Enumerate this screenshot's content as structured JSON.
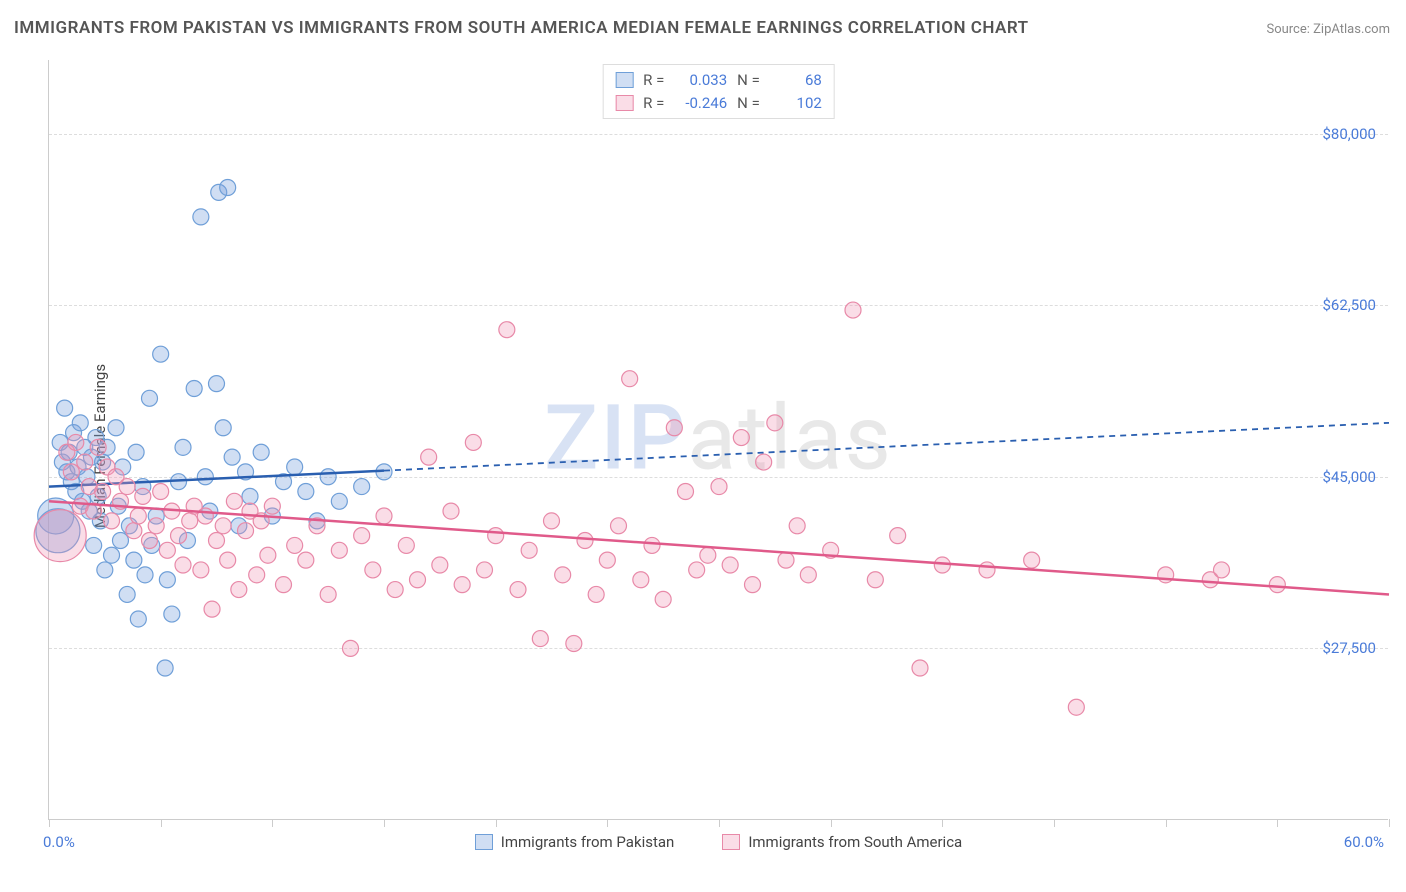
{
  "title": "IMMIGRANTS FROM PAKISTAN VS IMMIGRANTS FROM SOUTH AMERICA MEDIAN FEMALE EARNINGS CORRELATION CHART",
  "source": "Source: ZipAtlas.com",
  "watermark": {
    "zip": "ZIP",
    "atlas": "atlas"
  },
  "chart": {
    "type": "scatter-correlation",
    "y_axis_title": "Median Female Earnings",
    "xlim": [
      0,
      60
    ],
    "ylim": [
      10000,
      87500
    ],
    "x_tick_positions": [
      0,
      5,
      10,
      15,
      20,
      25,
      30,
      35,
      40,
      45,
      50,
      55,
      60
    ],
    "x_label_min": "0.0%",
    "x_label_max": "60.0%",
    "y_ticks": [
      {
        "v": 27500,
        "label": "$27,500"
      },
      {
        "v": 45000,
        "label": "$45,000"
      },
      {
        "v": 62500,
        "label": "$62,500"
      },
      {
        "v": 80000,
        "label": "$80,000"
      }
    ],
    "grid_color": "#dddddd",
    "background_color": "#ffffff",
    "axis_color": "#cccccc",
    "tick_label_color": "#4a7bd8",
    "series": [
      {
        "name": "Immigrants from Pakistan",
        "fill": "rgba(120,160,220,0.35)",
        "stroke": "#6f9fd8",
        "line_color": "#2a5fb0",
        "r_value": "0.033",
        "n_value": "68",
        "fit": {
          "x1": 0,
          "y1": 44000,
          "x2": 60,
          "y2": 50500,
          "solid_until_x": 15
        },
        "points": [
          {
            "x": 0.3,
            "y": 41000,
            "r": 18
          },
          {
            "x": 0.4,
            "y": 39500,
            "r": 22
          },
          {
            "x": 0.5,
            "y": 48500
          },
          {
            "x": 0.6,
            "y": 46500
          },
          {
            "x": 0.7,
            "y": 52000
          },
          {
            "x": 0.8,
            "y": 45500
          },
          {
            "x": 0.9,
            "y": 47500
          },
          {
            "x": 1.0,
            "y": 44500
          },
          {
            "x": 1.1,
            "y": 49500
          },
          {
            "x": 1.2,
            "y": 43500
          },
          {
            "x": 1.3,
            "y": 46000
          },
          {
            "x": 1.4,
            "y": 50500
          },
          {
            "x": 1.5,
            "y": 42500
          },
          {
            "x": 1.6,
            "y": 48000
          },
          {
            "x": 1.7,
            "y": 45000
          },
          {
            "x": 1.8,
            "y": 41500
          },
          {
            "x": 1.9,
            "y": 47000
          },
          {
            "x": 2.0,
            "y": 38000
          },
          {
            "x": 2.1,
            "y": 49000
          },
          {
            "x": 2.2,
            "y": 43000
          },
          {
            "x": 2.3,
            "y": 40500
          },
          {
            "x": 2.4,
            "y": 46500
          },
          {
            "x": 2.5,
            "y": 35500
          },
          {
            "x": 2.6,
            "y": 48000
          },
          {
            "x": 2.8,
            "y": 37000
          },
          {
            "x": 3.0,
            "y": 50000
          },
          {
            "x": 3.1,
            "y": 42000
          },
          {
            "x": 3.2,
            "y": 38500
          },
          {
            "x": 3.3,
            "y": 46000
          },
          {
            "x": 3.5,
            "y": 33000
          },
          {
            "x": 3.6,
            "y": 40000
          },
          {
            "x": 3.8,
            "y": 36500
          },
          {
            "x": 3.9,
            "y": 47500
          },
          {
            "x": 4.0,
            "y": 30500
          },
          {
            "x": 4.2,
            "y": 44000
          },
          {
            "x": 4.3,
            "y": 35000
          },
          {
            "x": 4.5,
            "y": 53000
          },
          {
            "x": 4.6,
            "y": 38000
          },
          {
            "x": 4.8,
            "y": 41000
          },
          {
            "x": 5.0,
            "y": 57500
          },
          {
            "x": 5.2,
            "y": 25500
          },
          {
            "x": 5.3,
            "y": 34500
          },
          {
            "x": 5.5,
            "y": 31000
          },
          {
            "x": 5.8,
            "y": 44500
          },
          {
            "x": 6.0,
            "y": 48000
          },
          {
            "x": 6.2,
            "y": 38500
          },
          {
            "x": 6.5,
            "y": 54000
          },
          {
            "x": 6.8,
            "y": 71500
          },
          {
            "x": 7.0,
            "y": 45000
          },
          {
            "x": 7.2,
            "y": 41500
          },
          {
            "x": 7.5,
            "y": 54500
          },
          {
            "x": 7.6,
            "y": 74000
          },
          {
            "x": 7.8,
            "y": 50000
          },
          {
            "x": 8.0,
            "y": 74500
          },
          {
            "x": 8.2,
            "y": 47000
          },
          {
            "x": 8.5,
            "y": 40000
          },
          {
            "x": 8.8,
            "y": 45500
          },
          {
            "x": 9.0,
            "y": 43000
          },
          {
            "x": 9.5,
            "y": 47500
          },
          {
            "x": 10.0,
            "y": 41000
          },
          {
            "x": 10.5,
            "y": 44500
          },
          {
            "x": 11.0,
            "y": 46000
          },
          {
            "x": 11.5,
            "y": 43500
          },
          {
            "x": 12.0,
            "y": 40500
          },
          {
            "x": 12.5,
            "y": 45000
          },
          {
            "x": 13.0,
            "y": 42500
          },
          {
            "x": 14.0,
            "y": 44000
          },
          {
            "x": 15.0,
            "y": 45500
          }
        ]
      },
      {
        "name": "Immigrants from South America",
        "fill": "rgba(240,150,180,0.32)",
        "stroke": "#e889a8",
        "line_color": "#e05a8a",
        "r_value": "-0.246",
        "n_value": "102",
        "fit": {
          "x1": 0,
          "y1": 42500,
          "x2": 60,
          "y2": 33000,
          "solid_until_x": 60
        },
        "points": [
          {
            "x": 0.5,
            "y": 39000,
            "r": 26
          },
          {
            "x": 0.8,
            "y": 47500
          },
          {
            "x": 1.0,
            "y": 45500
          },
          {
            "x": 1.2,
            "y": 48500
          },
          {
            "x": 1.4,
            "y": 42000
          },
          {
            "x": 1.6,
            "y": 46500
          },
          {
            "x": 1.8,
            "y": 44000
          },
          {
            "x": 2.0,
            "y": 41500
          },
          {
            "x": 2.2,
            "y": 48000
          },
          {
            "x": 2.4,
            "y": 43500
          },
          {
            "x": 2.6,
            "y": 46000
          },
          {
            "x": 2.8,
            "y": 40500
          },
          {
            "x": 3.0,
            "y": 45000
          },
          {
            "x": 3.2,
            "y": 42500
          },
          {
            "x": 3.5,
            "y": 44000
          },
          {
            "x": 3.8,
            "y": 39500
          },
          {
            "x": 4.0,
            "y": 41000
          },
          {
            "x": 4.2,
            "y": 43000
          },
          {
            "x": 4.5,
            "y": 38500
          },
          {
            "x": 4.8,
            "y": 40000
          },
          {
            "x": 5.0,
            "y": 43500
          },
          {
            "x": 5.3,
            "y": 37500
          },
          {
            "x": 5.5,
            "y": 41500
          },
          {
            "x": 5.8,
            "y": 39000
          },
          {
            "x": 6.0,
            "y": 36000
          },
          {
            "x": 6.3,
            "y": 40500
          },
          {
            "x": 6.5,
            "y": 42000
          },
          {
            "x": 6.8,
            "y": 35500
          },
          {
            "x": 7.0,
            "y": 41000
          },
          {
            "x": 7.3,
            "y": 31500
          },
          {
            "x": 7.5,
            "y": 38500
          },
          {
            "x": 7.8,
            "y": 40000
          },
          {
            "x": 8.0,
            "y": 36500
          },
          {
            "x": 8.3,
            "y": 42500
          },
          {
            "x": 8.5,
            "y": 33500
          },
          {
            "x": 8.8,
            "y": 39500
          },
          {
            "x": 9.0,
            "y": 41500
          },
          {
            "x": 9.3,
            "y": 35000
          },
          {
            "x": 9.5,
            "y": 40500
          },
          {
            "x": 9.8,
            "y": 37000
          },
          {
            "x": 10.0,
            "y": 42000
          },
          {
            "x": 10.5,
            "y": 34000
          },
          {
            "x": 11.0,
            "y": 38000
          },
          {
            "x": 11.5,
            "y": 36500
          },
          {
            "x": 12.0,
            "y": 40000
          },
          {
            "x": 12.5,
            "y": 33000
          },
          {
            "x": 13.0,
            "y": 37500
          },
          {
            "x": 13.5,
            "y": 27500
          },
          {
            "x": 14.0,
            "y": 39000
          },
          {
            "x": 14.5,
            "y": 35500
          },
          {
            "x": 15.0,
            "y": 41000
          },
          {
            "x": 15.5,
            "y": 33500
          },
          {
            "x": 16.0,
            "y": 38000
          },
          {
            "x": 16.5,
            "y": 34500
          },
          {
            "x": 17.0,
            "y": 47000
          },
          {
            "x": 17.5,
            "y": 36000
          },
          {
            "x": 18.0,
            "y": 41500
          },
          {
            "x": 18.5,
            "y": 34000
          },
          {
            "x": 19.0,
            "y": 48500
          },
          {
            "x": 19.5,
            "y": 35500
          },
          {
            "x": 20.0,
            "y": 39000
          },
          {
            "x": 20.5,
            "y": 60000
          },
          {
            "x": 21.0,
            "y": 33500
          },
          {
            "x": 21.5,
            "y": 37500
          },
          {
            "x": 22.0,
            "y": 28500
          },
          {
            "x": 22.5,
            "y": 40500
          },
          {
            "x": 23.0,
            "y": 35000
          },
          {
            "x": 23.5,
            "y": 28000
          },
          {
            "x": 24.0,
            "y": 38500
          },
          {
            "x": 24.5,
            "y": 33000
          },
          {
            "x": 25.0,
            "y": 36500
          },
          {
            "x": 25.5,
            "y": 40000
          },
          {
            "x": 26.0,
            "y": 55000
          },
          {
            "x": 26.5,
            "y": 34500
          },
          {
            "x": 27.0,
            "y": 38000
          },
          {
            "x": 27.5,
            "y": 32500
          },
          {
            "x": 28.0,
            "y": 50000
          },
          {
            "x": 28.5,
            "y": 43500
          },
          {
            "x": 29.0,
            "y": 35500
          },
          {
            "x": 29.5,
            "y": 37000
          },
          {
            "x": 30.0,
            "y": 44000
          },
          {
            "x": 30.5,
            "y": 36000
          },
          {
            "x": 31.0,
            "y": 49000
          },
          {
            "x": 31.5,
            "y": 34000
          },
          {
            "x": 32.0,
            "y": 46500
          },
          {
            "x": 32.5,
            "y": 50500
          },
          {
            "x": 33.0,
            "y": 36500
          },
          {
            "x": 33.5,
            "y": 40000
          },
          {
            "x": 34.0,
            "y": 35000
          },
          {
            "x": 35.0,
            "y": 37500
          },
          {
            "x": 36.0,
            "y": 62000
          },
          {
            "x": 37.0,
            "y": 34500
          },
          {
            "x": 38.0,
            "y": 39000
          },
          {
            "x": 39.0,
            "y": 25500
          },
          {
            "x": 40.0,
            "y": 36000
          },
          {
            "x": 42.0,
            "y": 35500
          },
          {
            "x": 44.0,
            "y": 36500
          },
          {
            "x": 46.0,
            "y": 21500
          },
          {
            "x": 50.0,
            "y": 35000
          },
          {
            "x": 52.0,
            "y": 34500
          },
          {
            "x": 52.5,
            "y": 35500
          },
          {
            "x": 55.0,
            "y": 34000
          }
        ]
      }
    ],
    "legend_bottom": [
      {
        "label": "Immigrants from Pakistan",
        "fill": "rgba(120,160,220,0.35)",
        "stroke": "#6f9fd8"
      },
      {
        "label": "Immigrants from South America",
        "fill": "rgba(240,150,180,0.32)",
        "stroke": "#e889a8"
      }
    ]
  }
}
